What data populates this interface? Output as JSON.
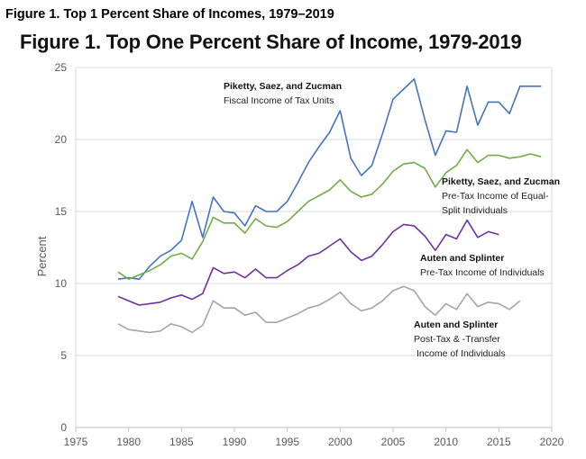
{
  "caption": "Figure 1. Top 1 Percent Share of Incomes, 1979–2019",
  "chart_data": {
    "type": "line",
    "title": "Figure 1. Top One Percent Share of Income, 1979-2019",
    "xlabel": "",
    "ylabel": "Percent",
    "xlim": [
      1975,
      2020
    ],
    "ylim": [
      0,
      25
    ],
    "xticks": [
      "1975",
      "1980",
      "1985",
      "1990",
      "1995",
      "2000",
      "2005",
      "2010",
      "2015",
      "2020"
    ],
    "yticks": [
      "0",
      "5",
      "10",
      "15",
      "20",
      "25"
    ],
    "grid": true,
    "legend": "none (inline annotations)",
    "series": [
      {
        "name": "Piketty, Saez, and Zucman",
        "sublabel": "Fiscal Income of Tax Units",
        "color": "#4472c4",
        "x": [
          1979,
          1980,
          1981,
          1982,
          1983,
          1984,
          1985,
          1986,
          1987,
          1988,
          1989,
          1990,
          1991,
          1992,
          1993,
          1994,
          1995,
          1996,
          1997,
          1998,
          1999,
          2000,
          2001,
          2002,
          2003,
          2004,
          2005,
          2006,
          2007,
          2008,
          2009,
          2010,
          2011,
          2012,
          2013,
          2014,
          2015,
          2016,
          2017,
          2018,
          2019
        ],
        "values": [
          10.3,
          10.4,
          10.3,
          11.2,
          11.9,
          12.3,
          13.0,
          15.7,
          13.2,
          16.0,
          15.0,
          14.9,
          14.0,
          15.4,
          15.0,
          15.0,
          15.7,
          17.0,
          18.4,
          19.5,
          20.5,
          22.0,
          18.7,
          17.5,
          18.2,
          20.4,
          22.8,
          23.5,
          24.2,
          21.4,
          18.9,
          20.6,
          20.5,
          23.7,
          21.0,
          22.6,
          22.6,
          21.8,
          23.7,
          23.7,
          23.7
        ]
      },
      {
        "name": "Piketty, Saez, and Zucman",
        "sublabel": "Pre-Tax Income of Equal-Split Individuals",
        "color": "#70ad47",
        "x": [
          1979,
          1980,
          1981,
          1982,
          1983,
          1984,
          1985,
          1986,
          1987,
          1988,
          1989,
          1990,
          1991,
          1992,
          1993,
          1994,
          1995,
          1996,
          1997,
          1998,
          1999,
          2000,
          2001,
          2002,
          2003,
          2004,
          2005,
          2006,
          2007,
          2008,
          2009,
          2010,
          2011,
          2012,
          2013,
          2014,
          2015,
          2016,
          2017,
          2018,
          2019
        ],
        "values": [
          10.8,
          10.3,
          10.6,
          10.9,
          11.3,
          11.9,
          12.1,
          11.7,
          12.9,
          14.6,
          14.2,
          14.2,
          13.5,
          14.5,
          14.0,
          13.9,
          14.3,
          15.0,
          15.7,
          16.1,
          16.5,
          17.2,
          16.4,
          16.0,
          16.2,
          16.9,
          17.8,
          18.3,
          18.4,
          18.0,
          16.7,
          17.7,
          18.2,
          19.3,
          18.4,
          18.9,
          18.9,
          18.7,
          18.8,
          19.0,
          18.8
        ]
      },
      {
        "name": "Auten and Splinter",
        "sublabel": "Pre-Tax Income of Individuals",
        "color": "#7030a0",
        "x": [
          1979,
          1980,
          1981,
          1982,
          1983,
          1984,
          1985,
          1986,
          1987,
          1988,
          1989,
          1990,
          1991,
          1992,
          1993,
          1994,
          1995,
          1996,
          1997,
          1998,
          1999,
          2000,
          2001,
          2002,
          2003,
          2004,
          2005,
          2006,
          2007,
          2008,
          2009,
          2010,
          2011,
          2012,
          2013,
          2014,
          2015
        ],
        "values": [
          9.1,
          8.8,
          8.5,
          8.6,
          8.7,
          9.0,
          9.2,
          8.9,
          9.3,
          11.1,
          10.7,
          10.8,
          10.4,
          11.0,
          10.4,
          10.4,
          10.9,
          11.3,
          11.9,
          12.1,
          12.6,
          13.1,
          12.2,
          11.6,
          11.9,
          12.7,
          13.6,
          14.1,
          14.0,
          13.3,
          12.3,
          13.4,
          13.1,
          14.4,
          13.2,
          13.6,
          13.4
        ]
      },
      {
        "name": "Auten and Splinter",
        "sublabel": "Post-Tax & -Transfer Income of Individuals",
        "color": "#a5a5a5",
        "x": [
          1979,
          1980,
          1981,
          1982,
          1983,
          1984,
          1985,
          1986,
          1987,
          1988,
          1989,
          1990,
          1991,
          1992,
          1993,
          1994,
          1995,
          1996,
          1997,
          1998,
          1999,
          2000,
          2001,
          2002,
          2003,
          2004,
          2005,
          2006,
          2007,
          2008,
          2009,
          2010,
          2011,
          2012,
          2013,
          2014,
          2015,
          2016,
          2017
        ],
        "values": [
          7.2,
          6.8,
          6.7,
          6.6,
          6.7,
          7.2,
          7.0,
          6.6,
          7.1,
          8.8,
          8.3,
          8.3,
          7.8,
          8.0,
          7.3,
          7.3,
          7.6,
          7.9,
          8.3,
          8.5,
          8.9,
          9.4,
          8.6,
          8.1,
          8.3,
          8.8,
          9.5,
          9.8,
          9.5,
          8.4,
          7.8,
          8.6,
          8.2,
          9.3,
          8.4,
          8.7,
          8.6,
          8.2,
          8.8
        ]
      }
    ],
    "annotations": [
      {
        "lines": [
          "Piketty, Saez, and Zucman",
          "Fiscal Income of Tax Units"
        ]
      },
      {
        "lines": [
          "Piketty, Saez, and Zucman",
          "Pre-Tax Income of Equal-",
          "Split Individuals"
        ]
      },
      {
        "lines": [
          "Auten and Splinter",
          "Pre-Tax Income of Individuals"
        ]
      },
      {
        "lines": [
          "Auten and Splinter",
          "Post-Tax & -Transfer",
          "Income of Individuals"
        ]
      }
    ]
  }
}
